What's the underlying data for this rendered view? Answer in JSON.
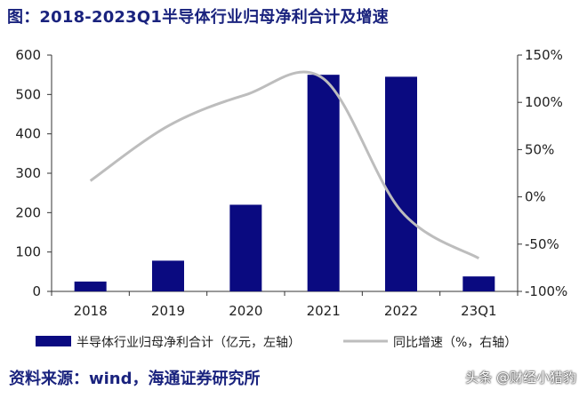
{
  "title": "图：2018-2023Q1半导体行业归母净利合计及增速",
  "source": "资料来源：wind，海通证券研究所",
  "watermark": "头条 @财经小猎豹",
  "colors": {
    "bar": "#0a0a80",
    "line": "#bdbdbd",
    "title": "#1a237e",
    "axis": "#333333"
  },
  "chart_data": {
    "type": "bar+line",
    "categories": [
      "2018",
      "2019",
      "2020",
      "2021",
      "2022",
      "23Q1"
    ],
    "series": [
      {
        "name": "半导体行业归母净利合计（亿元，左轴）",
        "type": "bar",
        "axis": "left",
        "values": [
          25,
          78,
          220,
          550,
          545,
          38
        ]
      },
      {
        "name": "同比增速（%，右轴）",
        "type": "line",
        "axis": "right",
        "values": [
          17,
          75,
          108,
          125,
          -15,
          -65
        ]
      }
    ],
    "left_axis": {
      "min": 0,
      "max": 600,
      "ticks": [
        "0",
        "100",
        "200",
        "300",
        "400",
        "500",
        "600"
      ]
    },
    "right_axis": {
      "min": -100,
      "max": 150,
      "ticks": [
        "-100%",
        "-50%",
        "0%",
        "50%",
        "100%",
        "150%"
      ]
    },
    "legend_position": "bottom",
    "grid": false
  }
}
